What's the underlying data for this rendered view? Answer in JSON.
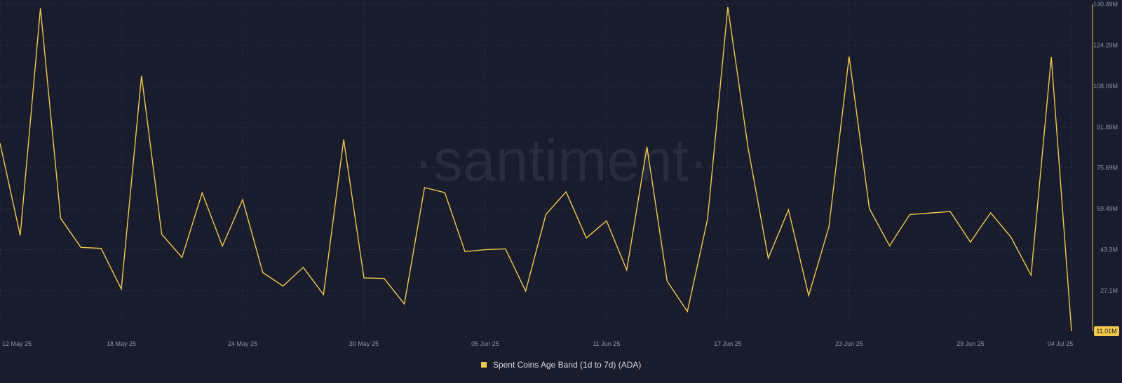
{
  "watermark": "·santiment·",
  "colors": {
    "background": "#181c2d",
    "line": "#f2c94c",
    "grid": "#2a2f42",
    "axis_text": "#8b91a6",
    "legend_text": "#d9dbe3",
    "last_value_bg": "#f2c94c",
    "last_value_text": "#181c2d"
  },
  "chart_data": {
    "type": "line",
    "title": "",
    "xlabel": "",
    "ylabel": "",
    "x_tick_labels": [
      "12 May 25",
      "18 May 25",
      "24 May 25",
      "30 May 25",
      "05 Jun 25",
      "11 Jun 25",
      "17 Jun 25",
      "23 Jun 25",
      "29 Jun 25",
      "04 Jul 25"
    ],
    "y_tick_labels": [
      "140.49M",
      "124.29M",
      "108.09M",
      "91.89M",
      "75.69M",
      "59.49M",
      "43.3M",
      "27.1M"
    ],
    "y_ticks": [
      140.49,
      124.29,
      108.09,
      91.89,
      75.69,
      59.49,
      43.3,
      27.1
    ],
    "ylim": [
      11.01,
      140.49
    ],
    "y_unit": "M",
    "grid": true,
    "legend_position": "bottom-center",
    "last_value_label": "11.01M",
    "x": [
      "12 May 25",
      "13 May 25",
      "14 May 25",
      "15 May 25",
      "16 May 25",
      "17 May 25",
      "18 May 25",
      "19 May 25",
      "20 May 25",
      "21 May 25",
      "22 May 25",
      "23 May 25",
      "24 May 25",
      "25 May 25",
      "26 May 25",
      "27 May 25",
      "28 May 25",
      "29 May 25",
      "30 May 25",
      "31 May 25",
      "01 Jun 25",
      "02 Jun 25",
      "03 Jun 25",
      "04 Jun 25",
      "05 Jun 25",
      "06 Jun 25",
      "07 Jun 25",
      "08 Jun 25",
      "09 Jun 25",
      "10 Jun 25",
      "11 Jun 25",
      "12 Jun 25",
      "13 Jun 25",
      "14 Jun 25",
      "15 Jun 25",
      "16 Jun 25",
      "17 Jun 25",
      "18 Jun 25",
      "19 Jun 25",
      "20 Jun 25",
      "21 Jun 25",
      "22 Jun 25",
      "23 Jun 25",
      "24 Jun 25",
      "25 Jun 25",
      "26 Jun 25",
      "27 Jun 25",
      "28 Jun 25",
      "29 Jun 25",
      "30 Jun 25",
      "01 Jul 25",
      "02 Jul 25",
      "03 Jul 25",
      "04 Jul 25"
    ],
    "series": [
      {
        "name": "Spent Coins Age Band (1d to 7d) (ADA)",
        "values": [
          85.5,
          48.9,
          138.9,
          55.7,
          44.2,
          43.8,
          27.7,
          112.2,
          49.4,
          40.2,
          65.8,
          44.7,
          63.1,
          34.2,
          28.9,
          36.3,
          25.5,
          86.9,
          32.1,
          31.9,
          21.8,
          67.9,
          65.9,
          42.5,
          43.3,
          43.6,
          26.9,
          57.2,
          66.2,
          47.9,
          54.7,
          35.2,
          84.0,
          30.8,
          18.8,
          55.5,
          139.4,
          83.7,
          39.9,
          59.1,
          25.1,
          52.3,
          119.8,
          59.6,
          44.8,
          57.2,
          57.8,
          58.4,
          46.3,
          57.9,
          48.3,
          33.2,
          119.6,
          11.01
        ]
      }
    ]
  },
  "legend": {
    "label": "Spent Coins Age Band (1d to 7d) (ADA)"
  }
}
